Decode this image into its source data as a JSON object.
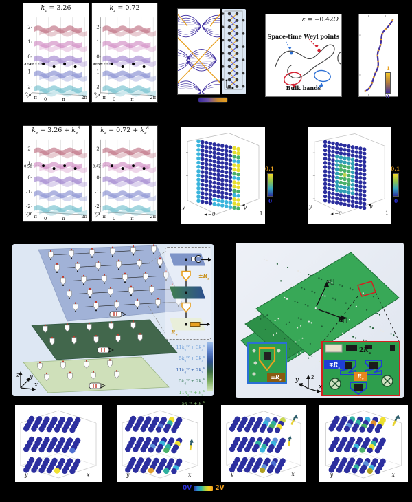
{
  "band": {
    "colors": [
      "#b2556b",
      "#c977b8",
      "#8f6fc6",
      "#7079c9",
      "#5ab4c4"
    ],
    "grid": "#d8d8d8",
    "yticks": [
      "2",
      "1",
      "0",
      "-1",
      "-2"
    ],
    "xticks": [
      "2π",
      "π",
      "0",
      "π",
      "2π"
    ],
    "axis_left_letter": "k",
    "axis_left_sub": "y",
    "axis_bottom_letter": "k",
    "axis_bottom_sub": "x",
    "panels": [
      {
        "svg": "bp0",
        "dash_y": 0.63,
        "dash_label": "-0.42"
      },
      {
        "svg": "bp1",
        "dash_y": 0.63,
        "dash_label": "-0.58"
      },
      {
        "svg": "bp2",
        "dash_y": 0.37,
        "dash_label": "0.58"
      },
      {
        "svg": "bp3",
        "dash_y": 0.37,
        "dash_label": "0.42"
      }
    ],
    "titles": {
      "t0": [
        [
          "k",
          "i"
        ],
        [
          "z",
          "sub"
        ],
        [
          " = 3.26",
          ""
        ]
      ],
      "t1": [
        [
          "k",
          "i"
        ],
        [
          "z",
          "sub"
        ],
        [
          " = 0.72",
          ""
        ]
      ],
      "t2": [
        [
          "k",
          "i"
        ],
        [
          "z",
          "sub"
        ],
        [
          " = 3.26 + ",
          ""
        ],
        [
          "k",
          "i"
        ],
        [
          "z",
          "sub"
        ],
        [
          "δ",
          "sup"
        ]
      ],
      "t3": [
        [
          "k",
          "i"
        ],
        [
          "z",
          "sub"
        ],
        [
          " = 0.72 + ",
          ""
        ],
        [
          "k",
          "i"
        ],
        [
          "z",
          "sub"
        ],
        [
          "δ",
          "sup"
        ]
      ]
    }
  },
  "spectrum": {
    "band_color": "#3b2a9e",
    "edge_color": "#e8a020"
  },
  "lattice": {
    "rows": 12,
    "dot_color": "#3a3a3a",
    "bond_a": "#4444cc",
    "bond_b": "#e8a020",
    "dots_side": "···"
  },
  "weyl": {
    "epsilon": [
      [
        "ε",
        "i"
      ],
      [
        " = −0.42",
        ""
      ],
      [
        "Ω",
        "i"
      ]
    ],
    "weyl_label": "Space-time Weyl points",
    "bulk_label": "Bulk bands",
    "red": "#d42030",
    "blue": "#2b6fd4"
  },
  "winding": {
    "cbar_top": "1",
    "cbar_bottom": "0",
    "curve": "#43309e",
    "dash": "#e8a020"
  },
  "voxel": {
    "cbar_top": "0.1",
    "cbar_bottom": "0",
    "panels": [
      {
        "svg": "vx0",
        "mode": "edge",
        "label_y": "y",
        "label_u": "−u⃗",
        "label_v": "v⃗",
        "label_one": "1"
      },
      {
        "svg": "vx1",
        "mode": "center",
        "label_y": "y",
        "label_u": "−u⃗",
        "label_v": "v⃗",
        "label_one": "1"
      }
    ],
    "base": "#2b2e9e",
    "cyan": "#3ab4dc",
    "teal": "#2f9fb4",
    "green": "#49b06a",
    "yellow": "#e8df2f",
    "lime": "#bcd24f"
  },
  "circuit": {
    "legend_rows": [
      {
        "color": "#6f9fd9",
        "segs": [
          [
            "11",
            ""
          ],
          [
            "k",
            "i"
          ],
          [
            "g",
            "sub"
          ],
          [
            "xy",
            "sup"
          ],
          [
            " + 3",
            ""
          ],
          [
            "k",
            "i"
          ],
          [
            "z",
            "sub"
          ],
          [
            "δ",
            "sup"
          ]
        ]
      },
      {
        "color": "#5b8fd0",
        "segs": [
          [
            "5",
            ""
          ],
          [
            "k",
            "i"
          ],
          [
            "g",
            "sub"
          ],
          [
            "xy",
            "sup"
          ],
          [
            " + 3",
            ""
          ],
          [
            "k",
            "i"
          ],
          [
            "z",
            "sub"
          ],
          [
            "δ",
            "sup"
          ]
        ]
      },
      {
        "color": "#2f5fae",
        "segs": [
          [
            "11",
            ""
          ],
          [
            "k",
            "i"
          ],
          [
            "g",
            "sub"
          ],
          [
            "xy",
            "sup"
          ],
          [
            " + 2",
            ""
          ],
          [
            "k",
            "i"
          ],
          [
            "z",
            "sub"
          ],
          [
            "δ",
            "sup"
          ]
        ]
      },
      {
        "color": "#3f7f5f",
        "segs": [
          [
            "5",
            ""
          ],
          [
            "k",
            "i"
          ],
          [
            "g",
            "sub"
          ],
          [
            "xy",
            "sup"
          ],
          [
            " + 2",
            ""
          ],
          [
            "k",
            "i"
          ],
          [
            "z",
            "sub"
          ],
          [
            "δ",
            "sup"
          ]
        ]
      },
      {
        "color": "#5fae5f",
        "segs": [
          [
            "11",
            ""
          ],
          [
            "k",
            "i"
          ],
          [
            "g",
            "sub"
          ],
          [
            "xy",
            "sup"
          ],
          [
            " + ",
            ""
          ],
          [
            "k",
            "i"
          ],
          [
            "z",
            "sub"
          ],
          [
            "δ",
            "sup"
          ]
        ]
      },
      {
        "color": "#8fc878",
        "segs": [
          [
            "5",
            ""
          ],
          [
            "k",
            "i"
          ],
          [
            "g",
            "sub"
          ],
          [
            "xy",
            "sup"
          ],
          [
            " + ",
            ""
          ],
          [
            "k",
            "i"
          ],
          [
            "z",
            "sub"
          ],
          [
            "δ",
            "sup"
          ]
        ]
      }
    ],
    "inset_rz_pm": [
      [
        "±",
        ""
      ],
      [
        "R",
        "i"
      ],
      [
        "z",
        "sub"
      ]
    ],
    "inset_rz": [
      [
        "R",
        "i"
      ],
      [
        "z",
        "sub"
      ]
    ],
    "axis_x": "x",
    "axis_y": "y",
    "axis_z": "z"
  },
  "pcb": {
    "vec_v": "v⃗",
    "vec_u": "u⃗",
    "label_2rx": [
      [
        "2",
        ""
      ],
      [
        "R",
        "i"
      ],
      [
        "x",
        "sub"
      ]
    ],
    "label_mrx": [
      [
        "∓",
        ""
      ],
      [
        "R",
        "i"
      ],
      [
        "x",
        "sub"
      ]
    ],
    "label_rx": [
      [
        "R",
        "i"
      ],
      [
        "x",
        "sub"
      ]
    ],
    "label_prz": [
      [
        "±",
        ""
      ],
      [
        "R",
        "i"
      ],
      [
        "z",
        "sub"
      ]
    ],
    "axis_x": "x",
    "axis_y": "y",
    "axis_z": "z"
  },
  "scatter": {
    "legend_min": "0V",
    "legend_max": "2V",
    "base": "#2c2f9f",
    "panels": [
      {
        "svg": "sc0",
        "label_y": "y",
        "label_x": "x",
        "specials": [
          {
            "l": 2,
            "r": 3,
            "c": 4,
            "col": "#f0e030"
          },
          {
            "l": 1,
            "r": 3,
            "c": 6,
            "col": "#4f6fd0"
          }
        ],
        "arrows": []
      },
      {
        "svg": "sc1",
        "label_y": "y",
        "label_x": "x",
        "specials": [
          {
            "l": 0,
            "r": 1,
            "c": 5,
            "col": "#2fb09f"
          },
          {
            "l": 0,
            "r": 0,
            "c": 5,
            "col": "#f0e030"
          },
          {
            "l": 0,
            "r": 2,
            "c": 4,
            "col": "#4f6fd0"
          },
          {
            "l": 1,
            "r": 1,
            "c": 4,
            "col": "#3ab4dc"
          },
          {
            "l": 1,
            "r": 2,
            "c": 5,
            "col": "#2fb09f"
          },
          {
            "l": 1,
            "r": 1,
            "c": 6,
            "col": "#f0e030"
          },
          {
            "l": 1,
            "r": 3,
            "c": 5,
            "col": "#49b06a"
          },
          {
            "l": 1,
            "r": 2,
            "c": 3,
            "col": "#5f8fd8"
          },
          {
            "l": 2,
            "r": 3,
            "c": 3,
            "col": "#e09f2f"
          },
          {
            "l": 2,
            "r": 3,
            "c": 5,
            "col": "#2fb09f"
          },
          {
            "l": 2,
            "r": 2,
            "c": 6,
            "col": "#3ab4dc"
          }
        ],
        "arrows": [
          {
            "x": 107,
            "y": 66,
            "dx": 2,
            "dy": -14
          }
        ]
      },
      {
        "svg": "sc2",
        "label_y": "y",
        "label_x": "x",
        "specials": [
          {
            "l": 0,
            "r": 0,
            "c": 4,
            "col": "#5f8fd8"
          },
          {
            "l": 0,
            "r": 1,
            "c": 4,
            "col": "#3ab4dc"
          },
          {
            "l": 0,
            "r": 1,
            "c": 5,
            "col": "#2fb09f"
          },
          {
            "l": 0,
            "r": 2,
            "c": 5,
            "col": "#49b06a"
          },
          {
            "l": 0,
            "r": 2,
            "c": 6,
            "col": "#f0e030"
          },
          {
            "l": 0,
            "r": 0,
            "c": 6,
            "col": "#c8d84f"
          },
          {
            "l": 1,
            "r": 1,
            "c": 3,
            "col": "#2fb09f"
          },
          {
            "l": 1,
            "r": 2,
            "c": 4,
            "col": "#2fb09f"
          },
          {
            "l": 1,
            "r": 1,
            "c": 5,
            "col": "#3ab4dc"
          },
          {
            "l": 1,
            "r": 0,
            "c": 5,
            "col": "#5f8fd8"
          },
          {
            "l": 1,
            "r": 3,
            "c": 4,
            "col": "#3ab4dc"
          },
          {
            "l": 2,
            "r": 2,
            "c": 4,
            "col": "#5f8fd8"
          },
          {
            "l": 2,
            "r": 3,
            "c": 4,
            "col": "#b0a020"
          },
          {
            "l": 2,
            "r": 1,
            "c": 5,
            "col": "#4f6fd0"
          }
        ],
        "arrows": [
          {
            "x": 104,
            "y": 28,
            "dx": 6,
            "dy": -12
          },
          {
            "x": 100,
            "y": 60,
            "dx": 2,
            "dy": -13
          }
        ]
      },
      {
        "svg": "sc3",
        "label_y": "y",
        "label_x": "x",
        "specials": [
          {
            "l": 0,
            "r": 0,
            "c": 2,
            "col": "#2fb09f"
          },
          {
            "l": 0,
            "r": 0,
            "c": 4,
            "col": "#3ab4dc"
          },
          {
            "l": 0,
            "r": 0,
            "c": 6,
            "col": "#f0e030"
          },
          {
            "l": 0,
            "r": 1,
            "c": 5,
            "col": "#e0902f"
          },
          {
            "l": 0,
            "r": 1,
            "c": 3,
            "col": "#2fb09f"
          },
          {
            "l": 0,
            "r": 2,
            "c": 4,
            "col": "#49b06a"
          },
          {
            "l": 0,
            "r": 2,
            "c": 2,
            "col": "#5f8fd8"
          },
          {
            "l": 0,
            "r": 1,
            "c": 6,
            "col": "#e8df2f"
          },
          {
            "l": 1,
            "r": 1,
            "c": 5,
            "col": "#2fb09f"
          },
          {
            "l": 1,
            "r": 2,
            "c": 5,
            "col": "#f0e030"
          },
          {
            "l": 1,
            "r": 2,
            "c": 3,
            "col": "#3ab4dc"
          },
          {
            "l": 1,
            "r": 3,
            "c": 4,
            "col": "#49b06a"
          },
          {
            "l": 2,
            "r": 2,
            "c": 3,
            "col": "#2fb09f"
          },
          {
            "l": 2,
            "r": 1,
            "c": 4,
            "col": "#5f8fd8"
          },
          {
            "l": 2,
            "r": 3,
            "c": 5,
            "col": "#b0a020"
          },
          {
            "l": 2,
            "r": 2,
            "c": 5,
            "col": "#3ab4dc"
          }
        ],
        "arrows": [
          {
            "x": 106,
            "y": 30,
            "dx": 6,
            "dy": -13
          }
        ]
      }
    ]
  }
}
